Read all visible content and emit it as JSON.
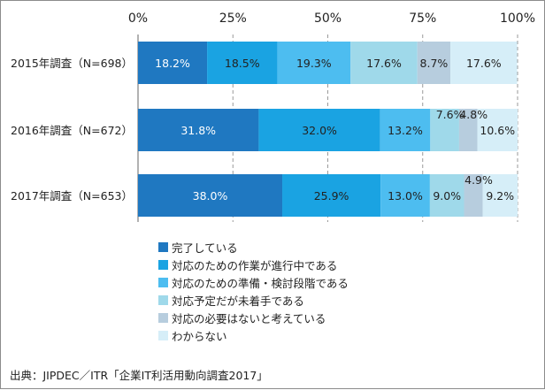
{
  "chart_data": {
    "type": "bar",
    "orientation": "horizontal",
    "stacked": true,
    "percent": true,
    "xlim": [
      0,
      100
    ],
    "xticks": [
      "0%",
      "25%",
      "50%",
      "75%",
      "100%"
    ],
    "grid": "vertical-dashed",
    "legend_position": "bottom",
    "categories": [
      "2015年調査（N=698）",
      "2016年調査（N=672）",
      "2017年調査（N=653）"
    ],
    "series": [
      {
        "name": "完了している",
        "color": "#1f78c1",
        "values": [
          18.2,
          31.8,
          38.0
        ],
        "labels": [
          "18.2%",
          "31.8%",
          "38.0%"
        ]
      },
      {
        "name": "対応のための作業が進行中である",
        "color": "#1aa3e2",
        "values": [
          18.5,
          32.0,
          25.9
        ],
        "labels": [
          "18.5%",
          "32.0%",
          "25.9%"
        ]
      },
      {
        "name": "対応のための準備・検討段階である",
        "color": "#4dbdf0",
        "values": [
          19.3,
          13.2,
          13.0
        ],
        "labels": [
          "19.3%",
          "13.2%",
          "13.0%"
        ]
      },
      {
        "name": "対応予定だが未着手である",
        "color": "#9fd9ea",
        "values": [
          17.6,
          7.6,
          9.0
        ],
        "labels": [
          "17.6%",
          "7.6%",
          "9.0%"
        ]
      },
      {
        "name": "対応の必要はないと考えている",
        "color": "#b7cdde",
        "values": [
          8.7,
          4.8,
          4.9
        ],
        "labels": [
          "8.7%",
          "4.8%",
          "4.9%"
        ]
      },
      {
        "name": "わからない",
        "color": "#d6eef8",
        "values": [
          17.6,
          10.6,
          9.2
        ],
        "labels": [
          "17.6%",
          "10.6%",
          "9.2%"
        ]
      }
    ]
  },
  "source_note": "出典：JIPDEC／ITR「企業IT利活用動向調査2017」"
}
